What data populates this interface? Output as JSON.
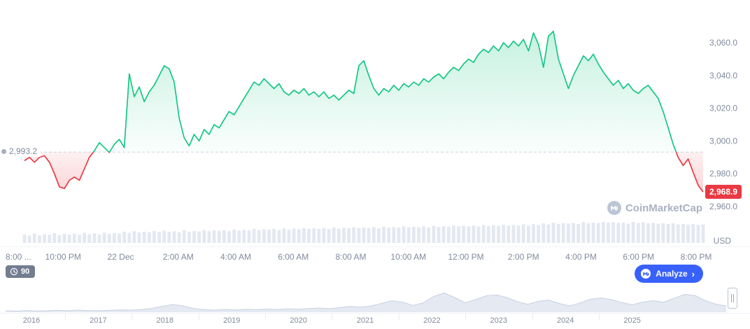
{
  "colors": {
    "green": "#16c784",
    "red": "#ea3943",
    "gray_text": "#808a9d",
    "volume": "#e4e8f0",
    "navigator_fill": "#e4e9f2",
    "navigator_stroke": "#c9d2e0",
    "blue": "#3861fb"
  },
  "labels": {
    "baseline_label": "2,993.2",
    "price_badge": "2,968.9",
    "usd": "USD",
    "watermark": "CoinMarketCap",
    "range_badge": "90",
    "analyze": "Analyze",
    "analyze_arrow": "›"
  },
  "chart_data": {
    "type": "area",
    "title": "CoinMarketCap intraday price chart (USD)",
    "unit": "USD",
    "baseline": 2993.2,
    "last_price": 2968.9,
    "ylim": [
      2955,
      3075
    ],
    "y_ticks": [
      "3,060.0",
      "3,040.0",
      "3,020.0",
      "3,000.0",
      "2,980.0",
      "2,960.0"
    ],
    "y_tick_values": [
      3060,
      3040,
      3020,
      3000,
      2980,
      2960
    ],
    "x_labels": [
      "8:00 ...",
      "10:00 PM",
      "22 Dec",
      "2:00 AM",
      "4:00 AM",
      "6:00 AM",
      "8:00 AM",
      "10:00 AM",
      "12:00 PM",
      "2:00 PM",
      "4:00 PM",
      "6:00 PM",
      "8:00 PM"
    ],
    "legend": "off",
    "grid": "off",
    "prices": [
      2988,
      2990,
      2987,
      2990,
      2991,
      2987,
      2980,
      2972,
      2971,
      2976,
      2978,
      2976,
      2983,
      2990,
      2994,
      2999,
      2996,
      2993,
      2998,
      3001,
      2996,
      3041,
      3027,
      3033,
      3024,
      3030,
      3034,
      3040,
      3046,
      3044,
      3036,
      3014,
      3002,
      2997,
      3004,
      3000,
      3007,
      3004,
      3010,
      3008,
      3013,
      3018,
      3016,
      3021,
      3026,
      3031,
      3036,
      3034,
      3038,
      3035,
      3032,
      3035,
      3030,
      3028,
      3031,
      3029,
      3032,
      3028,
      3030,
      3027,
      3030,
      3026,
      3028,
      3025,
      3028,
      3031,
      3029,
      3046,
      3049,
      3040,
      3032,
      3028,
      3032,
      3030,
      3034,
      3031,
      3035,
      3033,
      3036,
      3034,
      3038,
      3036,
      3039,
      3041,
      3038,
      3042,
      3045,
      3043,
      3047,
      3050,
      3048,
      3053,
      3056,
      3054,
      3058,
      3055,
      3060,
      3057,
      3061,
      3058,
      3062,
      3055,
      3066,
      3059,
      3045,
      3064,
      3067,
      3050,
      3041,
      3032,
      3040,
      3046,
      3052,
      3049,
      3053,
      3047,
      3042,
      3038,
      3034,
      3037,
      3032,
      3035,
      3031,
      3029,
      3032,
      3034,
      3030,
      3026,
      3018,
      3008,
      2998,
      2990,
      2985,
      2989,
      2981,
      2973,
      2968.9
    ],
    "volumes": [
      0.3,
      0.26,
      0.34,
      0.27,
      0.31,
      0.29,
      0.35,
      0.28,
      0.32,
      0.3,
      0.33,
      0.29,
      0.36,
      0.31,
      0.34,
      0.3,
      0.37,
      0.32,
      0.35,
      0.33,
      0.4,
      0.36,
      0.42,
      0.37,
      0.4,
      0.38,
      0.43,
      0.39,
      0.44,
      0.4,
      0.42,
      0.38,
      0.45,
      0.4,
      0.43,
      0.41,
      0.46,
      0.42,
      0.45,
      0.43,
      0.46,
      0.42,
      0.48,
      0.44,
      0.47,
      0.45,
      0.5,
      0.46,
      0.49,
      0.47,
      0.5,
      0.46,
      0.52,
      0.48,
      0.51,
      0.49,
      0.53,
      0.5,
      0.52,
      0.5,
      0.53,
      0.49,
      0.55,
      0.51,
      0.54,
      0.52,
      0.56,
      0.53,
      0.55,
      0.53,
      0.56,
      0.52,
      0.58,
      0.54,
      0.57,
      0.55,
      0.59,
      0.56,
      0.58,
      0.56,
      0.59,
      0.55,
      0.61,
      0.57,
      0.6,
      0.58,
      0.62,
      0.59,
      0.61,
      0.59,
      0.62,
      0.58,
      0.64,
      0.6,
      0.63,
      0.61,
      0.65,
      0.62,
      0.64,
      0.62,
      0.66,
      0.62,
      0.68,
      0.64,
      0.7,
      0.66,
      0.72,
      0.68,
      0.71,
      0.69,
      0.72,
      0.68,
      0.74,
      0.7,
      0.73,
      0.71,
      0.75,
      0.72,
      0.74,
      0.72,
      0.73,
      0.69,
      0.75,
      0.71,
      0.74,
      0.7,
      0.72,
      0.69,
      0.71,
      0.68,
      0.7,
      0.66,
      0.68,
      0.65,
      0.67,
      0.64,
      0.66
    ],
    "navigator": {
      "years": [
        "2016",
        "2017",
        "2018",
        "2019",
        "2020",
        "2021",
        "2022",
        "2023",
        "2024",
        "2025"
      ],
      "values": [
        0.07,
        0.05,
        0.08,
        0.06,
        0.07,
        0.09,
        0.07,
        0.1,
        0.08,
        0.07,
        0.09,
        0.11,
        0.1,
        0.13,
        0.18,
        0.28,
        0.37,
        0.3,
        0.18,
        0.12,
        0.1,
        0.13,
        0.11,
        0.14,
        0.12,
        0.15,
        0.13,
        0.16,
        0.14,
        0.17,
        0.2,
        0.17,
        0.22,
        0.28,
        0.24,
        0.3,
        0.42,
        0.55,
        0.48,
        0.32,
        0.45,
        0.75,
        0.92,
        0.7,
        0.45,
        0.6,
        0.78,
        0.82,
        0.7,
        0.5,
        0.38,
        0.52,
        0.58,
        0.42,
        0.3,
        0.44,
        0.62,
        0.68,
        0.6,
        0.46,
        0.36,
        0.48,
        0.55,
        0.48,
        0.66,
        0.85,
        0.8,
        0.55,
        0.38,
        0.3
      ]
    }
  }
}
